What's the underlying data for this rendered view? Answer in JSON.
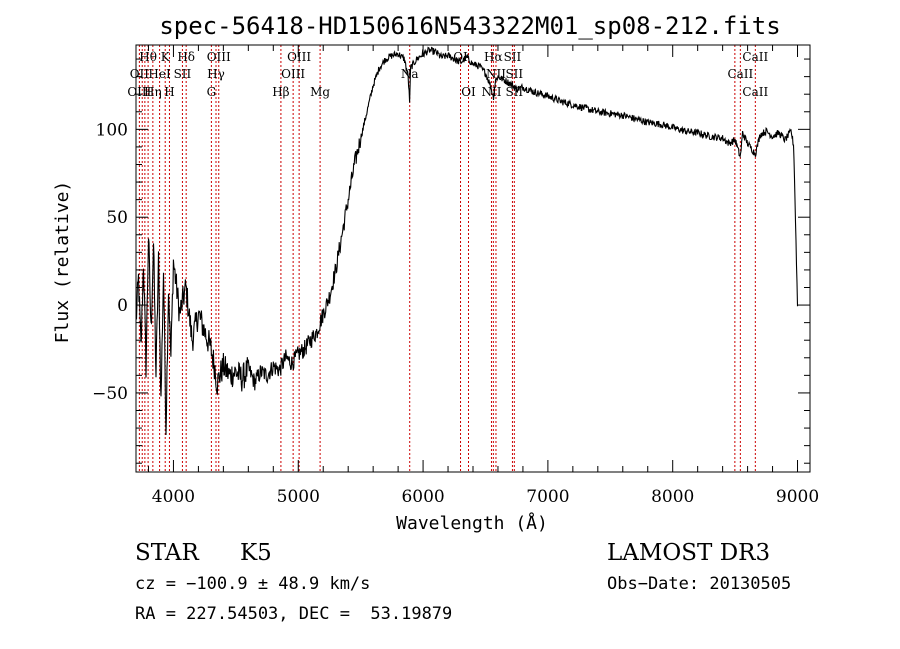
{
  "chart_data": {
    "type": "line",
    "title": "spec-56418-HD150616N543322M01_sp08-212.fits",
    "xlabel": "Wavelength (Å)",
    "ylabel": "Flux (relative)",
    "xlim": [
      3700,
      9100
    ],
    "ylim": [
      -95,
      148
    ],
    "xticks": [
      4000,
      5000,
      6000,
      7000,
      8000,
      9000
    ],
    "yticks": [
      -50,
      0,
      50,
      100
    ],
    "x_minor_step": 200,
    "y_minor_step": 10,
    "series": [
      {
        "name": "spectrum",
        "color": "#000000",
        "x": [
          3700,
          3720,
          3740,
          3760,
          3780,
          3800,
          3820,
          3840,
          3860,
          3880,
          3900,
          3920,
          3940,
          3960,
          3980,
          4000,
          4050,
          4100,
          4150,
          4200,
          4250,
          4300,
          4330,
          4350,
          4370,
          4400,
          4450,
          4500,
          4550,
          4600,
          4650,
          4700,
          4750,
          4800,
          4850,
          4900,
          4950,
          5000,
          5050,
          5100,
          5150,
          5200,
          5250,
          5300,
          5350,
          5400,
          5450,
          5500,
          5550,
          5600,
          5650,
          5700,
          5750,
          5800,
          5850,
          5880,
          5893,
          5900,
          5950,
          6000,
          6050,
          6100,
          6150,
          6200,
          6250,
          6300,
          6350,
          6400,
          6450,
          6500,
          6540,
          6563,
          6580,
          6600,
          6650,
          6700,
          6750,
          6800,
          6900,
          7000,
          7100,
          7200,
          7300,
          7400,
          7500,
          7600,
          7700,
          7800,
          7900,
          8000,
          8100,
          8200,
          8300,
          8400,
          8450,
          8500,
          8542,
          8560,
          8600,
          8662,
          8700,
          8750,
          8800,
          8850,
          8900,
          8950,
          8970,
          8980,
          9000
        ],
        "y": [
          -10,
          15,
          -25,
          25,
          -35,
          40,
          -15,
          35,
          -40,
          25,
          -55,
          20,
          -70,
          10,
          -30,
          25,
          -5,
          10,
          -20,
          -5,
          -15,
          -25,
          -35,
          -45,
          -40,
          -35,
          -40,
          -38,
          -42,
          -36,
          -44,
          -38,
          -40,
          -35,
          -37,
          -30,
          -33,
          -28,
          -25,
          -20,
          -15,
          -5,
          5,
          20,
          40,
          60,
          80,
          95,
          110,
          125,
          135,
          140,
          142,
          143,
          140,
          130,
          115,
          135,
          140,
          143,
          145,
          144,
          141,
          142,
          140,
          138,
          141,
          137,
          136,
          132,
          125,
          118,
          128,
          130,
          128,
          126,
          123,
          124,
          121,
          119,
          116,
          114,
          112,
          110,
          109,
          108,
          106,
          104,
          103,
          101,
          99,
          98,
          96,
          95,
          92,
          94,
          84,
          98,
          92,
          86,
          97,
          99,
          96,
          98,
          94,
          99,
          90,
          60,
          0
        ]
      }
    ],
    "lines": {
      "top_row": [
        {
          "label": "Hθ",
          "x": 3797
        },
        {
          "label": "K",
          "x": 3934
        },
        {
          "label": "Hδ",
          "x": 4102
        },
        {
          "label": "OIII",
          "x": 4363
        },
        {
          "label": "OIII",
          "x": 5007
        },
        {
          "label": "OI",
          "x": 6300
        },
        {
          "label": "Hα",
          "x": 6563
        },
        {
          "label": "SII",
          "x": 6716
        },
        {
          "label": "CaII",
          "x": 8662
        }
      ],
      "mid_row": [
        {
          "label": "OII",
          "x": 3727
        },
        {
          "label": "HeI",
          "x": 3889
        },
        {
          "label": "SII",
          "x": 4072
        },
        {
          "label": "Hγ",
          "x": 4341
        },
        {
          "label": "OIII",
          "x": 4959
        },
        {
          "label": "Na",
          "x": 5893
        },
        {
          "label": "NII",
          "x": 6584
        },
        {
          "label": "SII",
          "x": 6731
        },
        {
          "label": "CaII",
          "x": 8542
        }
      ],
      "bottom_row": [
        {
          "label": "OIII",
          "x": 3727
        },
        {
          "label": "Hη",
          "x": 3835
        },
        {
          "label": "H",
          "x": 3968
        },
        {
          "label": "G",
          "x": 4304
        },
        {
          "label": "Hβ",
          "x": 4861
        },
        {
          "label": "Mg",
          "x": 5175
        },
        {
          "label": "OI",
          "x": 6364
        },
        {
          "label": "NII",
          "x": 6548
        },
        {
          "label": "SII",
          "x": 6731
        },
        {
          "label": "CaII",
          "x": 8662
        }
      ],
      "marker_positions": [
        3727,
        3750,
        3771,
        3797,
        3835,
        3889,
        3934,
        3968,
        4072,
        4102,
        4304,
        4341,
        4363,
        4861,
        4959,
        5007,
        5175,
        5893,
        6300,
        6364,
        6548,
        6563,
        6584,
        6716,
        6731,
        8498,
        8542,
        8662
      ]
    },
    "line_marker_color": "#cc0000"
  },
  "info": {
    "class_label": "STAR",
    "subclass": "K5",
    "survey": "LAMOST DR3",
    "cz": "cz = −100.9 ± 48.9 km/s",
    "obs_date": "Obs−Date: 20130505",
    "coords": "RA = 227.54503, DEC =  53.19879"
  }
}
